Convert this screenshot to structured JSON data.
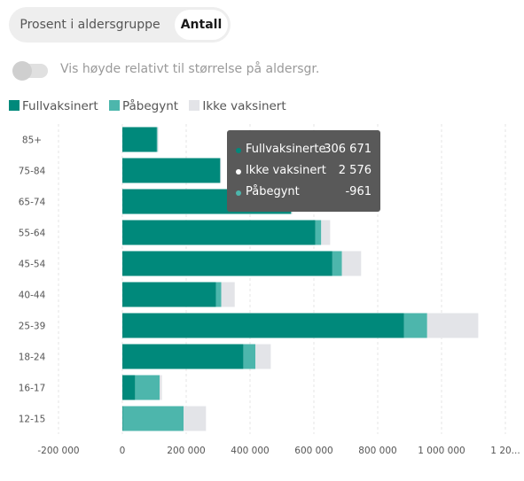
{
  "toggle_group": {
    "option_percent": "Prosent i aldersgruppe",
    "option_count": "Antall",
    "selected": "Antall"
  },
  "relative_toggle": {
    "label": "Vis høyde relativt til størrelse på aldersgr.",
    "on": false
  },
  "legend": [
    {
      "label": "Fullvaksinert",
      "color": "#00897b"
    },
    {
      "label": "Påbegynt",
      "color": "#4db6ac"
    },
    {
      "label": "Ikke vaksinert",
      "color": "#e3e4e8"
    }
  ],
  "tooltip": {
    "rows": [
      {
        "label": "Fullvaksinerte",
        "value": "306 671",
        "color": "#00897b"
      },
      {
        "label": "Ikke vaksinert",
        "value": "2 576",
        "color": "#ffffff"
      },
      {
        "label": "Påbegynt",
        "value": "-961",
        "color": "#4db6ac"
      }
    ]
  },
  "chart_data": {
    "type": "bar",
    "orientation": "horizontal",
    "stacked": true,
    "categories": [
      "85+",
      "75-84",
      "65-74",
      "55-64",
      "45-54",
      "40-44",
      "25-39",
      "18-24",
      "16-17",
      "12-15"
    ],
    "series": [
      {
        "name": "Fullvaksinert",
        "color": "#00897b",
        "values": [
          108000,
          306671,
          528000,
          605000,
          658000,
          293000,
          882000,
          379000,
          40000,
          2000
        ]
      },
      {
        "name": "Påbegynt",
        "color": "#4db6ac",
        "values": [
          2000,
          -961,
          2000,
          18000,
          30000,
          17000,
          73000,
          38000,
          77000,
          190000
        ]
      },
      {
        "name": "Ikke vaksinert",
        "color": "#e3e4e8",
        "values": [
          3000,
          2576,
          3000,
          28000,
          60000,
          42000,
          160000,
          48000,
          7000,
          70000
        ]
      }
    ],
    "xticks": [
      "-200 000",
      "0",
      "200 000",
      "400 000",
      "600 000",
      "800 000",
      "1 000 000",
      "1 20..."
    ],
    "xtick_values": [
      -200000,
      0,
      200000,
      400000,
      600000,
      800000,
      1000000,
      1200000
    ],
    "xlim": [
      -200000,
      1200000
    ],
    "grid": "vertical",
    "legend_position": "top-left"
  }
}
